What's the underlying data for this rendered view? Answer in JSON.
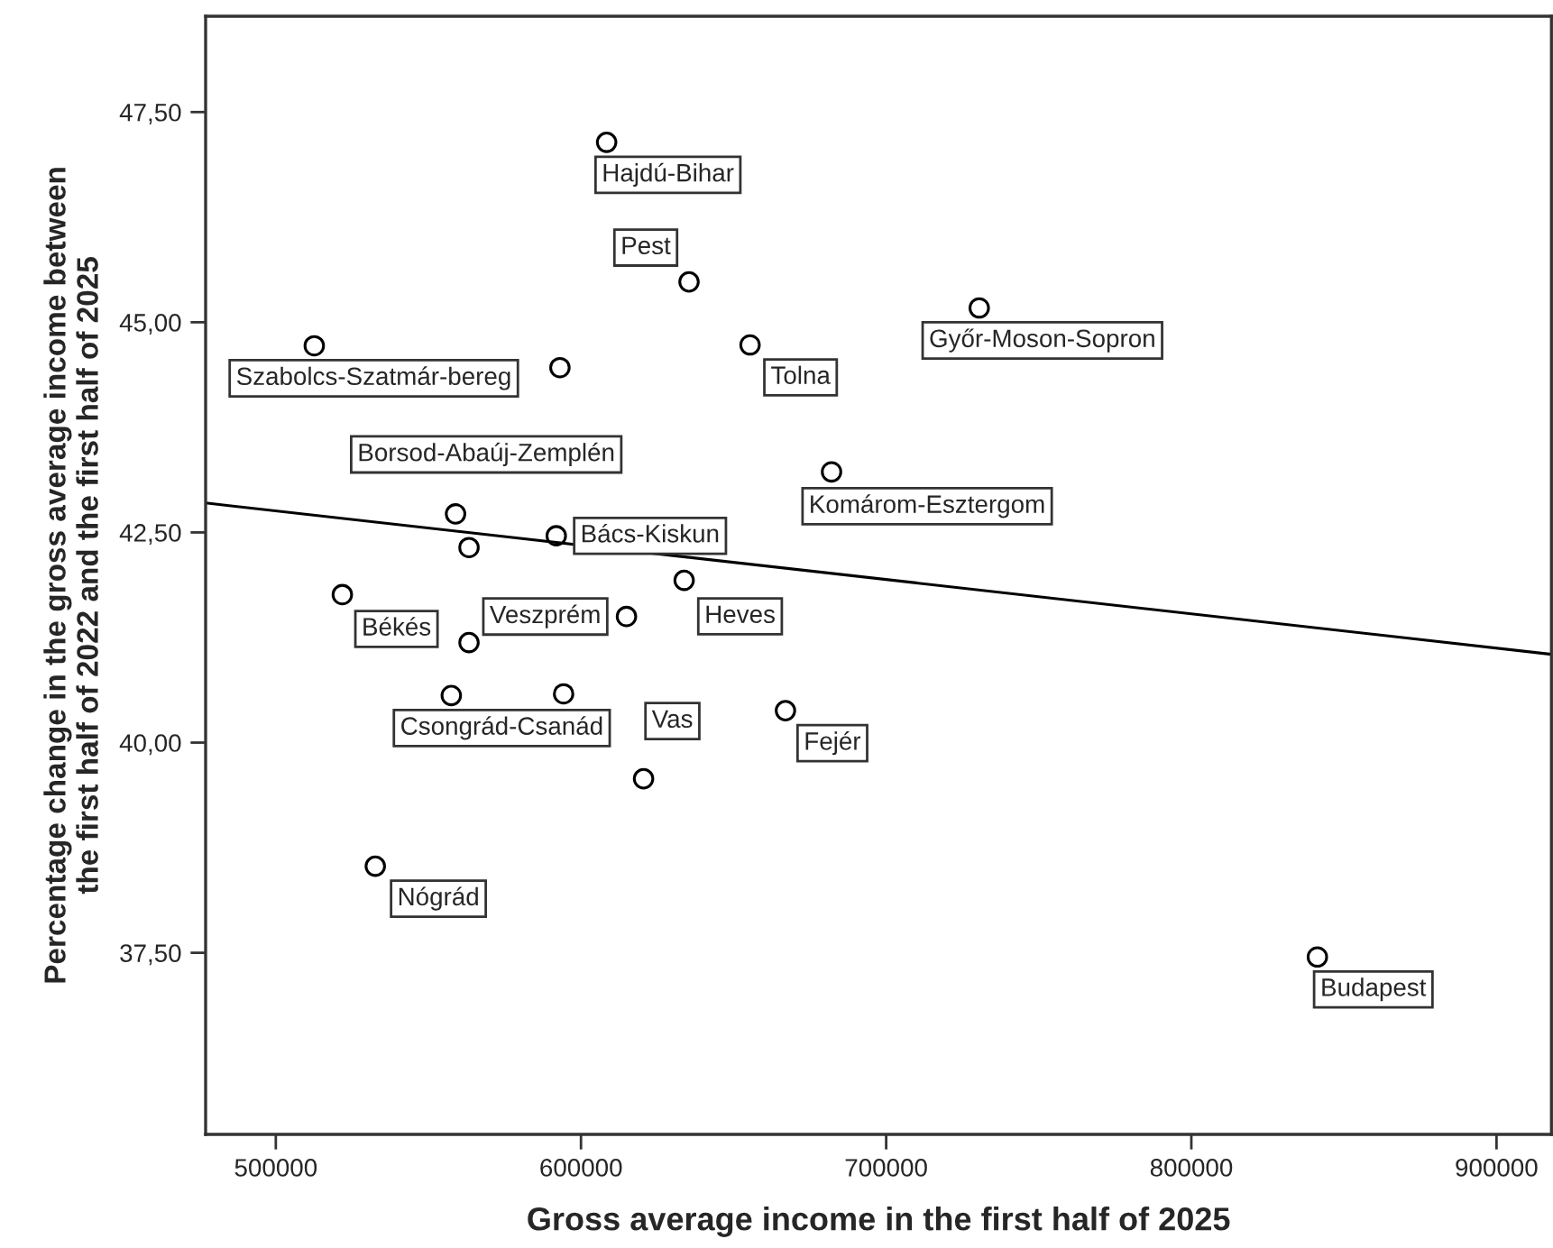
{
  "chart_data": {
    "type": "scatter",
    "xlabel": "Gross average income in the first half of 2025",
    "ylabel": "Percentage change in the gross average income between\nthe first half of 2022 and the first half of 2025",
    "xlim": [
      477000,
      918000
    ],
    "ylim": [
      35.34,
      48.64
    ],
    "xticks": [
      500000,
      600000,
      700000,
      800000,
      900000
    ],
    "yticks": [
      {
        "value": 37.5,
        "label": "37,50"
      },
      {
        "value": 40,
        "label": "40,00"
      },
      {
        "value": 42.5,
        "label": "42,50"
      },
      {
        "value": 45,
        "label": "45,00"
      },
      {
        "value": 47.5,
        "label": "47,50"
      }
    ],
    "grid": false,
    "legend": false,
    "series": [
      {
        "marker": "circle",
        "color": "#000000",
        "x": [
          608400,
          635400,
          512600,
          558900,
          655400,
          730500,
          682100,
          591900,
          633800,
          521800,
          614900,
          557500,
          620500,
          667000,
          532600,
          841300,
          593100,
          563300,
          563300,
          594300
        ],
        "values": [
          47.14,
          45.48,
          44.72,
          42.72,
          44.73,
          45.17,
          43.22,
          42.46,
          41.93,
          41.76,
          41.5,
          40.56,
          39.57,
          40.38,
          38.53,
          37.45,
          44.46,
          42.32,
          41.19,
          40.58
        ]
      },
      {
        "type": "line",
        "marker": "none",
        "color": "#000000",
        "x": [
          477000,
          918000
        ],
        "values": [
          42.85,
          41.05
        ]
      }
    ],
    "annotations": [
      {
        "text": "Hajdú-Bihar",
        "x": 608400,
        "y": 47.14
      },
      {
        "text": "Pest",
        "x": 635400,
        "y": 45.48
      },
      {
        "text": "Szabolcs-Szatmár-bereg",
        "x": 512600,
        "y": 44.72
      },
      {
        "text": "Borsod-Abaúj-Zemplén",
        "x": 558900,
        "y": 42.72
      },
      {
        "text": "Tolna",
        "x": 655400,
        "y": 44.73
      },
      {
        "text": "Győr-Moson-Sopron",
        "x": 730500,
        "y": 45.17
      },
      {
        "text": "Komárom-Esztergom",
        "x": 682100,
        "y": 43.22
      },
      {
        "text": "Bács-Kiskun",
        "x": 591900,
        "y": 42.46
      },
      {
        "text": "Heves",
        "x": 633800,
        "y": 41.93
      },
      {
        "text": "Békés",
        "x": 521800,
        "y": 41.76
      },
      {
        "text": "Veszprém",
        "x": 614900,
        "y": 41.5
      },
      {
        "text": "Csongrád-Csanád",
        "x": 557500,
        "y": 40.56
      },
      {
        "text": "Vas",
        "x": 620500,
        "y": 39.57
      },
      {
        "text": "Fejér",
        "x": 667000,
        "y": 40.38
      },
      {
        "text": "Nógrád",
        "x": 532600,
        "y": 38.53
      },
      {
        "text": "Budapest",
        "x": 841300,
        "y": 37.45
      }
    ]
  }
}
